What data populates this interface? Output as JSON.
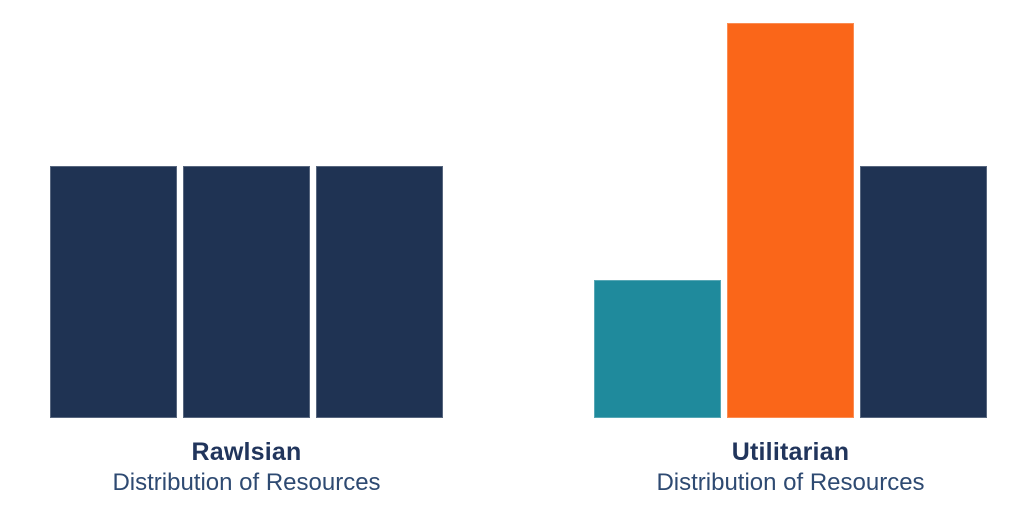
{
  "background_color": "#FFFFFF",
  "colors": {
    "navy": "#1F3353",
    "teal": "#1F8A9C",
    "orange": "#FA6619",
    "title_text": "#21355C",
    "subtitle_text": "#2E4A72"
  },
  "chart_data": [
    {
      "type": "bar",
      "name": "rawlsian",
      "title": "Rawlsian",
      "subtitle": "Distribution of Resources",
      "categories": [
        "bar-1",
        "bar-2",
        "bar-3"
      ],
      "values": [
        1.0,
        1.0,
        1.0
      ],
      "bar_colors": [
        "#1F3353",
        "#1F3353",
        "#1F3353"
      ],
      "units": "relative share of resources",
      "ylim": [
        0,
        1.57
      ],
      "xlabel": "",
      "ylabel": "",
      "axes_visible": false,
      "grid": false,
      "legend": false,
      "annotations": []
    },
    {
      "type": "bar",
      "name": "utilitarian",
      "title": "Utilitarian",
      "subtitle": "Distribution of Resources",
      "categories": [
        "bar-1",
        "bar-2",
        "bar-3"
      ],
      "values": [
        0.55,
        1.57,
        1.0
      ],
      "bar_colors": [
        "#1F8A9C",
        "#FA6619",
        "#1F3353"
      ],
      "units": "relative share of resources",
      "ylim": [
        0,
        1.57
      ],
      "xlabel": "",
      "ylabel": "",
      "axes_visible": false,
      "grid": false,
      "legend": false,
      "annotations": []
    }
  ]
}
